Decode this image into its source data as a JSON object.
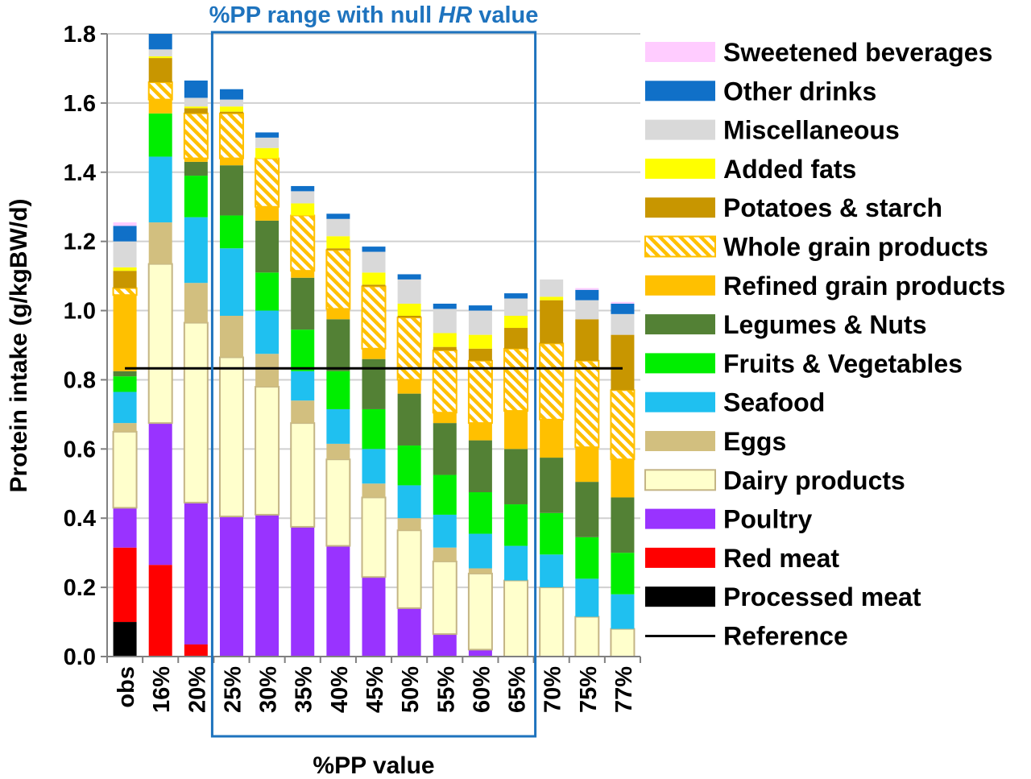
{
  "chart_data": {
    "type": "bar",
    "stacked": true,
    "ylabel": "Protein intake (g/kgBW/d)",
    "xlabel": "%PP value",
    "ylim": [
      0,
      1.8
    ],
    "y_ticks": [
      "0.0",
      "0.2",
      "0.4",
      "0.6",
      "0.8",
      "1.0",
      "1.2",
      "1.4",
      "1.6",
      "1.8"
    ],
    "grid": "horizontal",
    "legend_position": "right",
    "categories": [
      "obs",
      "16%",
      "20%",
      "25%",
      "30%",
      "35%",
      "40%",
      "45%",
      "50%",
      "55%",
      "60%",
      "65%",
      "70%",
      "75%",
      "77%"
    ],
    "highlight": {
      "label_prefix": "%PP range with null ",
      "label_em": "HR",
      "label_suffix": " value",
      "from": "25%",
      "to": "65%",
      "color": "#1e73be"
    },
    "reference": {
      "name": "Reference",
      "value": 0.833,
      "color": "#000000"
    },
    "series": [
      {
        "name": "Processed meat",
        "color": "#000000",
        "values": [
          0.1,
          0,
          0,
          0,
          0,
          0,
          0,
          0,
          0,
          0,
          0,
          0,
          0,
          0,
          0
        ]
      },
      {
        "name": "Red meat",
        "color": "#ff0000",
        "values": [
          0.215,
          0.265,
          0.035,
          0,
          0,
          0,
          0,
          0,
          0,
          0,
          0,
          0,
          0,
          0,
          0
        ]
      },
      {
        "name": "Poultry",
        "color": "#9933ff",
        "values": [
          0.115,
          0.41,
          0.41,
          0.405,
          0.41,
          0.375,
          0.32,
          0.23,
          0.14,
          0.065,
          0.02,
          0,
          0,
          0,
          0
        ]
      },
      {
        "name": "Dairy products",
        "color": "#ffffcc",
        "stroke": "#c4b585",
        "values": [
          0.22,
          0.46,
          0.52,
          0.46,
          0.37,
          0.3,
          0.25,
          0.23,
          0.225,
          0.21,
          0.22,
          0.22,
          0.2,
          0.115,
          0.08
        ]
      },
      {
        "name": "Eggs",
        "color": "#d2bf7f",
        "values": [
          0.025,
          0.12,
          0.115,
          0.12,
          0.095,
          0.065,
          0.045,
          0.04,
          0.035,
          0.04,
          0.015,
          0,
          0,
          0,
          0
        ]
      },
      {
        "name": "Seafood",
        "color": "#1fc0f0",
        "values": [
          0.09,
          0.19,
          0.19,
          0.195,
          0.125,
          0.085,
          0.1,
          0.1,
          0.095,
          0.095,
          0.1,
          0.1,
          0.095,
          0.11,
          0.1
        ]
      },
      {
        "name": "Fruits & Vegetables",
        "color": "#00ee00",
        "values": [
          0.045,
          0.125,
          0.12,
          0.095,
          0.11,
          0.12,
          0.11,
          0.115,
          0.115,
          0.115,
          0.12,
          0.12,
          0.12,
          0.12,
          0.12
        ]
      },
      {
        "name": "Legumes & Nuts",
        "color": "#538135",
        "values": [
          0.015,
          0,
          0.04,
          0.145,
          0.15,
          0.15,
          0.15,
          0.145,
          0.15,
          0.15,
          0.15,
          0.16,
          0.16,
          0.16,
          0.16
        ]
      },
      {
        "name": "Refined grain products",
        "color": "#ffc000",
        "values": [
          0.22,
          0.04,
          0.01,
          0.02,
          0.04,
          0.02,
          0.03,
          0.03,
          0.04,
          0.03,
          0.05,
          0.11,
          0.11,
          0.1,
          0.11
        ]
      },
      {
        "name": "Whole grain products",
        "color": "#ffc000",
        "pattern": "hatch",
        "values": [
          0.02,
          0.05,
          0.13,
          0.13,
          0.14,
          0.16,
          0.17,
          0.18,
          0.18,
          0.18,
          0.18,
          0.18,
          0.22,
          0.25,
          0.2
        ]
      },
      {
        "name": "Potatoes & starch",
        "color": "#c89600",
        "values": [
          0.05,
          0.07,
          0.015,
          0.005,
          0,
          0,
          0.005,
          0.005,
          0.005,
          0.01,
          0.035,
          0.06,
          0.125,
          0.12,
          0.16
        ]
      },
      {
        "name": "Added fats",
        "color": "#ffff00",
        "values": [
          0.01,
          0.005,
          0.005,
          0.015,
          0.03,
          0.035,
          0.035,
          0.035,
          0.035,
          0.04,
          0.04,
          0.035,
          0.01,
          0,
          0
        ]
      },
      {
        "name": "Miscellaneous",
        "color": "#d9d9d9",
        "values": [
          0.075,
          0.02,
          0.025,
          0.02,
          0.03,
          0.035,
          0.05,
          0.06,
          0.07,
          0.07,
          0.07,
          0.05,
          0.05,
          0.055,
          0.06
        ]
      },
      {
        "name": "Other drinks",
        "color": "#1070c8",
        "values": [
          0.045,
          0.045,
          0.05,
          0.03,
          0.015,
          0.015,
          0.015,
          0.015,
          0.015,
          0.015,
          0.015,
          0.015,
          0,
          0.03,
          0.03
        ]
      },
      {
        "name": "Sweetened beverages",
        "color": "#ffccff",
        "values": [
          0.01,
          0,
          0,
          0,
          0,
          0,
          0,
          0,
          0,
          0,
          0,
          0,
          0,
          0.005,
          0.005
        ]
      }
    ]
  }
}
